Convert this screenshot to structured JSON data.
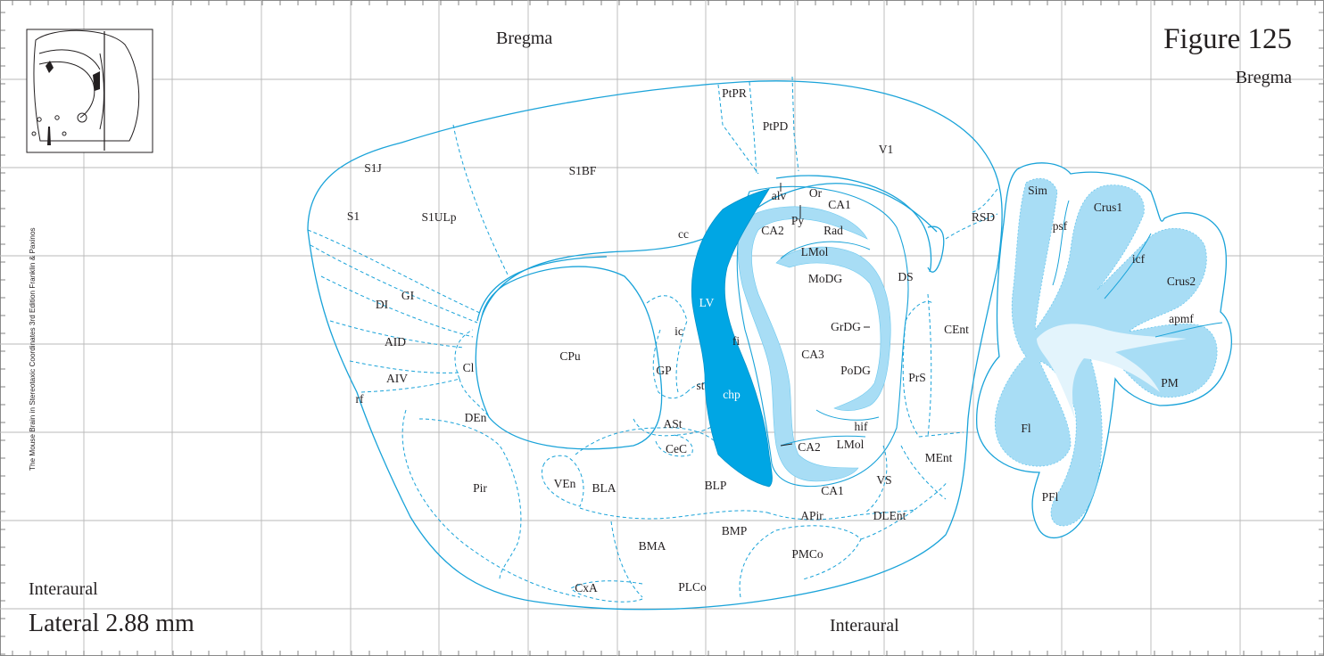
{
  "header": {
    "figure_title": "Figure 125",
    "bregma_top": "Bregma",
    "bregma_right": "Bregma"
  },
  "footer": {
    "interaural_left": "Interaural",
    "interaural_bottom": "Interaural",
    "lateral": "Lateral 2.88 mm"
  },
  "credit": "The Mouse Brain in Stereotaxic Coordinates 3rd Edition  Franklin & Paxinos",
  "colors": {
    "outline": "#1aa3d9",
    "grid": "#b8b8b8",
    "ventricle_fill": "#00a6e4",
    "hippocampus_fill": "#a8ddf5",
    "cerebellum_dark": "#a8ddf5",
    "cerebellum_light": "#e3f4fc"
  },
  "labels": {
    "S1J": "S1J",
    "S1": "S1",
    "S1ULp": "S1ULp",
    "S1BF": "S1BF",
    "PtPR": "PtPR",
    "PtPD": "PtPD",
    "V1": "V1",
    "RSD": "RSD",
    "cc": "cc",
    "alv": "alv",
    "Or": "Or",
    "CA1_top": "CA1",
    "Py": "Py",
    "CA2_top": "CA2",
    "Rad": "Rad",
    "LMol_top": "LMol",
    "MoDG": "MoDG",
    "DS": "DS",
    "GrDG": "GrDG",
    "CA3": "CA3",
    "PoDG": "PoDG",
    "CEnt": "CEnt",
    "PrS": "PrS",
    "hif": "hif",
    "LMol_bottom": "LMol",
    "CA2_bottom": "CA2",
    "MEnt": "MEnt",
    "VS": "VS",
    "CA1_bottom": "CA1",
    "DLEnt": "DLEnt",
    "APir": "APir",
    "BMP": "BMP",
    "PMCo": "PMCo",
    "PLCo": "PLCo",
    "BMA": "BMA",
    "CxA": "CxA",
    "BLP": "BLP",
    "BLA": "BLA",
    "VEn": "VEn",
    "Pir": "Pir",
    "DEn": "DEn",
    "Cl": "Cl",
    "CPu": "CPu",
    "AIV": "AIV",
    "AID": "AID",
    "DI": "DI",
    "GI": "GI",
    "rf": "rf",
    "LV": "LV",
    "chp": "chp",
    "fi": "fi",
    "ic": "ic",
    "GP": "GP",
    "st": "st",
    "ASt": "ASt",
    "CeC": "CeC",
    "Sim": "Sim",
    "psf": "psf",
    "Crus1": "Crus1",
    "icf": "icf",
    "Crus2": "Crus2",
    "apmf": "apmf",
    "PM": "PM",
    "Fl": "Fl",
    "PFl": "PFl"
  }
}
